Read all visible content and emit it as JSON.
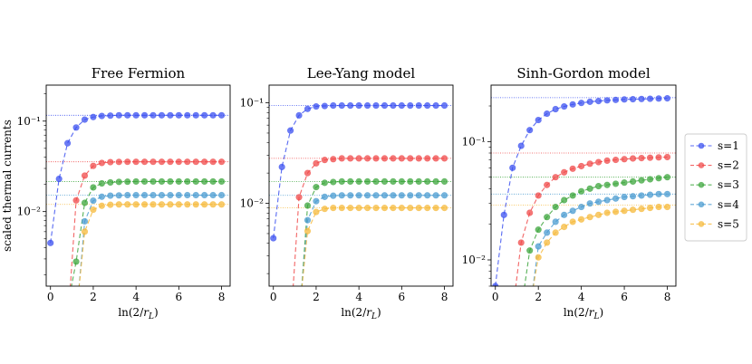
{
  "chart_data": [
    {
      "type": "line",
      "title": "Free Fermion",
      "xlabel": "ln(2/r_L)",
      "ylabel": "scaled thermal currents",
      "xlim": [
        -0.2,
        8.4
      ],
      "ylim": [
        0.0015,
        0.25
      ],
      "yscale": "log",
      "xticks": [
        0,
        2,
        4,
        6,
        8
      ],
      "yticks": [
        {
          "value": 0.01,
          "label": "10⁻²"
        },
        {
          "value": 0.1,
          "label": "10⁻¹"
        }
      ],
      "x": [
        0.0,
        0.4,
        0.8,
        1.2,
        1.6,
        2.0,
        2.4,
        2.8,
        3.2,
        3.6,
        4.0,
        4.4,
        4.8,
        5.2,
        5.6,
        6.0,
        6.4,
        6.8,
        7.2,
        7.6,
        8.0
      ],
      "series": [
        {
          "name": "s=1",
          "color": "#3b50f0",
          "asymptote": 0.116,
          "values": [
            0.0045,
            0.023,
            0.057,
            0.085,
            0.104,
            0.111,
            0.114,
            0.115,
            0.116,
            0.116,
            0.116,
            0.116,
            0.116,
            0.116,
            0.116,
            0.116,
            0.116,
            0.116,
            0.116,
            0.116,
            0.116
          ]
        },
        {
          "name": "s=2",
          "color": "#f04a4a",
          "asymptote": 0.0355,
          "values": [
            null,
            null,
            null,
            0.0133,
            0.025,
            0.032,
            0.0345,
            0.0352,
            0.0354,
            0.0355,
            0.0355,
            0.0355,
            0.0355,
            0.0355,
            0.0355,
            0.0355,
            0.0355,
            0.0355,
            0.0355,
            0.0355,
            0.0355
          ]
        },
        {
          "name": "s=3",
          "color": "#3ca53c",
          "asymptote": 0.0215,
          "values": [
            null,
            null,
            null,
            0.0028,
            0.0125,
            0.0185,
            0.0205,
            0.021,
            0.0213,
            0.0214,
            0.0215,
            0.0215,
            0.0215,
            0.0215,
            0.0215,
            0.0215,
            0.0215,
            0.0215,
            0.0215,
            0.0215,
            0.0215
          ]
        },
        {
          "name": "s=4",
          "color": "#4a9bd0",
          "asymptote": 0.0152,
          "values": [
            null,
            null,
            null,
            null,
            0.0078,
            0.0132,
            0.0146,
            0.015,
            0.0151,
            0.0152,
            0.0152,
            0.0152,
            0.0152,
            0.0152,
            0.0152,
            0.0152,
            0.0152,
            0.0152,
            0.0152,
            0.0152,
            0.0152
          ]
        },
        {
          "name": "s=5",
          "color": "#f6b93b",
          "asymptote": 0.012,
          "values": [
            null,
            null,
            null,
            null,
            0.006,
            0.0105,
            0.0116,
            0.0119,
            0.012,
            0.012,
            0.012,
            0.012,
            0.012,
            0.012,
            0.012,
            0.012,
            0.012,
            0.012,
            0.012,
            0.012,
            0.012
          ]
        }
      ]
    },
    {
      "type": "line",
      "title": "Lee-Yang model",
      "xlabel": "ln(2/r_L)",
      "ylabel": "",
      "xlim": [
        -0.2,
        8.4
      ],
      "ylim": [
        0.0015,
        0.15
      ],
      "yscale": "log",
      "xticks": [
        0,
        2,
        4,
        6,
        8
      ],
      "yticks": [
        {
          "value": 0.01,
          "label": "10⁻²"
        },
        {
          "value": 0.1,
          "label": "10⁻¹"
        }
      ],
      "x": [
        0.0,
        0.4,
        0.8,
        1.2,
        1.6,
        2.0,
        2.4,
        2.8,
        3.2,
        3.6,
        4.0,
        4.4,
        4.8,
        5.2,
        5.6,
        6.0,
        6.4,
        6.8,
        7.2,
        7.6,
        8.0
      ],
      "series": [
        {
          "name": "s=1",
          "color": "#3b50f0",
          "asymptote": 0.094,
          "values": [
            0.0045,
            0.023,
            0.053,
            0.075,
            0.087,
            0.092,
            0.093,
            0.094,
            0.094,
            0.094,
            0.094,
            0.094,
            0.094,
            0.094,
            0.094,
            0.094,
            0.094,
            0.094,
            0.094,
            0.094,
            0.094
          ]
        },
        {
          "name": "s=2",
          "color": "#f04a4a",
          "asymptote": 0.028,
          "values": [
            null,
            null,
            null,
            0.0115,
            0.02,
            0.025,
            0.027,
            0.0275,
            0.028,
            0.028,
            0.028,
            0.028,
            0.028,
            0.028,
            0.028,
            0.028,
            0.028,
            0.028,
            0.028,
            0.028,
            0.028
          ]
        },
        {
          "name": "s=3",
          "color": "#3ca53c",
          "asymptote": 0.0165,
          "values": [
            null,
            null,
            null,
            null,
            0.0095,
            0.0145,
            0.016,
            0.0163,
            0.0165,
            0.0165,
            0.0165,
            0.0165,
            0.0165,
            0.0165,
            0.0165,
            0.0165,
            0.0165,
            0.0165,
            0.0165,
            0.0165,
            0.0165
          ]
        },
        {
          "name": "s=4",
          "color": "#4a9bd0",
          "asymptote": 0.012,
          "values": [
            null,
            null,
            null,
            null,
            0.0068,
            0.0105,
            0.0116,
            0.0119,
            0.012,
            0.012,
            0.012,
            0.012,
            0.012,
            0.012,
            0.012,
            0.012,
            0.012,
            0.012,
            0.012,
            0.012,
            0.012
          ]
        },
        {
          "name": "s=5",
          "color": "#f6b93b",
          "asymptote": 0.009,
          "values": [
            null,
            null,
            null,
            null,
            0.0053,
            0.0082,
            0.0088,
            0.009,
            0.009,
            0.009,
            0.009,
            0.009,
            0.009,
            0.009,
            0.009,
            0.009,
            0.009,
            0.009,
            0.009,
            0.009,
            0.009
          ]
        }
      ]
    },
    {
      "type": "line",
      "title": "Sinh-Gordon model",
      "xlabel": "ln(2/r_L)",
      "ylabel": "",
      "xlim": [
        -0.2,
        8.4
      ],
      "ylim": [
        0.006,
        0.3
      ],
      "yscale": "log",
      "xticks": [
        0,
        2,
        4,
        6,
        8
      ],
      "yticks": [
        {
          "value": 0.01,
          "label": "10⁻²"
        },
        {
          "value": 0.1,
          "label": "10⁻¹"
        }
      ],
      "x": [
        0.0,
        0.4,
        0.8,
        1.2,
        1.6,
        2.0,
        2.4,
        2.8,
        3.2,
        3.6,
        4.0,
        4.4,
        4.8,
        5.2,
        5.6,
        6.0,
        6.4,
        6.8,
        7.2,
        7.6,
        8.0
      ],
      "series": [
        {
          "name": "s=1",
          "color": "#3b50f0",
          "asymptote": 0.235,
          "values": [
            0.006,
            0.024,
            0.06,
            0.092,
            0.125,
            0.152,
            0.172,
            0.188,
            0.198,
            0.206,
            0.212,
            0.217,
            0.22,
            0.223,
            0.225,
            0.227,
            0.228,
            0.229,
            0.23,
            0.231,
            0.232
          ]
        },
        {
          "name": "s=2",
          "color": "#f04a4a",
          "asymptote": 0.08,
          "values": [
            null,
            null,
            null,
            0.014,
            0.025,
            0.035,
            0.043,
            0.05,
            0.055,
            0.059,
            0.062,
            0.065,
            0.067,
            0.069,
            0.07,
            0.071,
            0.072,
            0.0725,
            0.073,
            0.0735,
            0.074
          ]
        },
        {
          "name": "s=3",
          "color": "#3ca53c",
          "asymptote": 0.05,
          "values": [
            null,
            null,
            null,
            null,
            0.012,
            0.018,
            0.023,
            0.028,
            0.032,
            0.035,
            0.038,
            0.04,
            0.042,
            0.043,
            0.044,
            0.045,
            0.046,
            0.047,
            0.048,
            0.049,
            0.05
          ]
        },
        {
          "name": "s=4",
          "color": "#4a9bd0",
          "asymptote": 0.036,
          "values": [
            null,
            null,
            null,
            null,
            null,
            0.013,
            0.017,
            0.021,
            0.024,
            0.026,
            0.028,
            0.03,
            0.031,
            0.032,
            0.033,
            0.034,
            0.0345,
            0.035,
            0.0355,
            0.036,
            0.036
          ]
        },
        {
          "name": "s=5",
          "color": "#f6b93b",
          "asymptote": 0.029,
          "values": [
            null,
            null,
            null,
            null,
            null,
            0.0105,
            0.014,
            0.017,
            0.019,
            0.021,
            0.022,
            0.023,
            0.024,
            0.025,
            0.0255,
            0.026,
            0.0265,
            0.027,
            0.0275,
            0.028,
            0.028
          ]
        }
      ]
    }
  ],
  "legend": {
    "position": "right",
    "items": [
      {
        "label": "s=1",
        "color": "#3b50f0"
      },
      {
        "label": "s=2",
        "color": "#f04a4a"
      },
      {
        "label": "s=3",
        "color": "#3ca53c"
      },
      {
        "label": "s=4",
        "color": "#4a9bd0"
      },
      {
        "label": "s=5",
        "color": "#f6b93b"
      }
    ]
  }
}
